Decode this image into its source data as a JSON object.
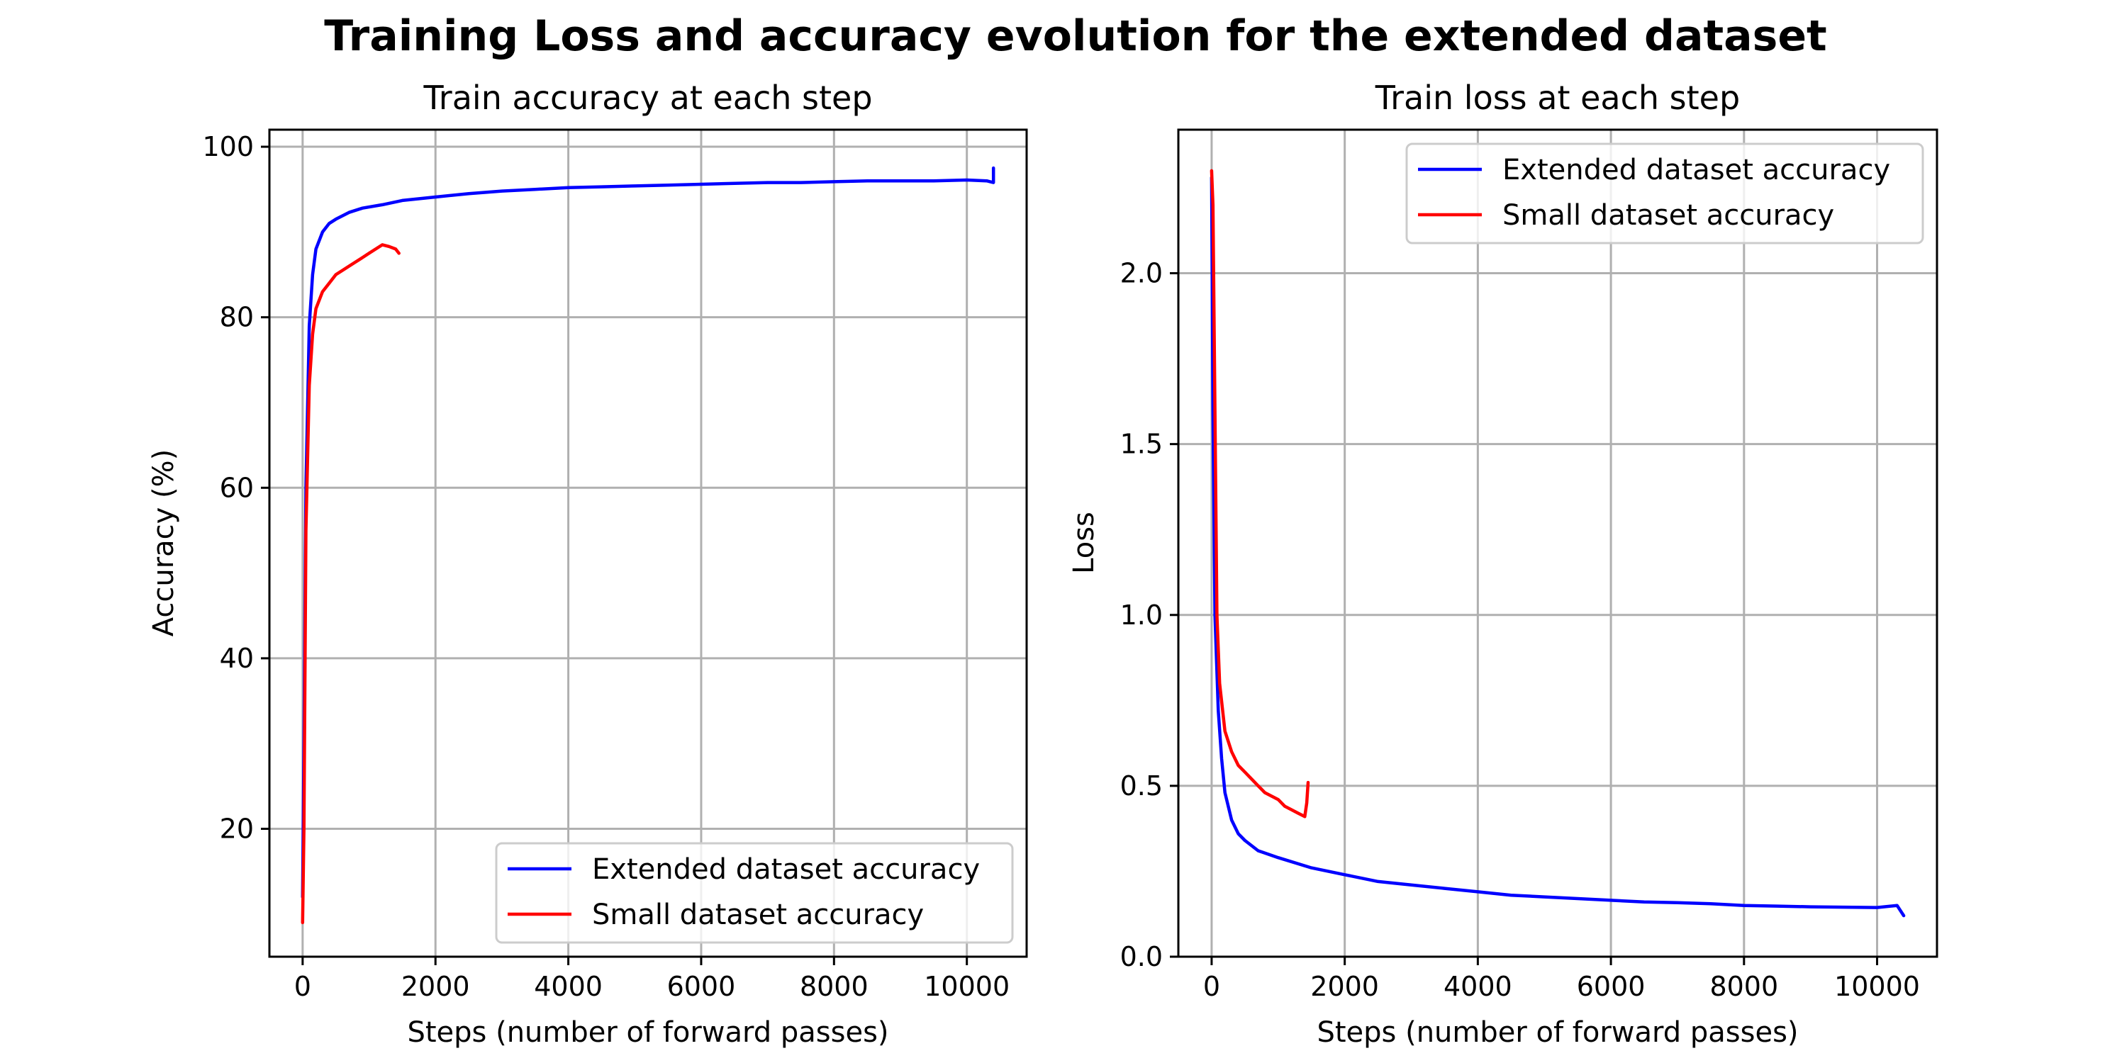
{
  "figure_title": "Training Loss and accuracy evolution for the extended dataset",
  "colors": {
    "extended": "#0000ff",
    "small": "#ff0000",
    "grid": "#b0b0b0"
  },
  "chart_data": [
    {
      "type": "line",
      "title": "Train accuracy at each step",
      "xlabel": "Steps (number of forward passes)",
      "ylabel": "Accuracy (%)",
      "xlim": [
        -500,
        10900
      ],
      "ylim": [
        5,
        102
      ],
      "xticks": [
        0,
        2000,
        4000,
        6000,
        8000,
        10000
      ],
      "yticks": [
        20,
        40,
        60,
        80,
        100
      ],
      "grid": true,
      "legend_position": "lower-right",
      "series": [
        {
          "name": "Extended dataset accuracy",
          "color": "#0000ff",
          "x": [
            0,
            20,
            50,
            100,
            150,
            200,
            300,
            400,
            500,
            700,
            900,
            1200,
            1500,
            2000,
            2500,
            3000,
            3500,
            4000,
            4500,
            5000,
            5500,
            6000,
            6500,
            7000,
            7500,
            8000,
            8500,
            9000,
            9500,
            10000,
            10300,
            10400,
            10400
          ],
          "y": [
            12,
            30,
            60,
            79,
            85,
            88,
            90,
            91,
            91.5,
            92.3,
            92.8,
            93.2,
            93.7,
            94.1,
            94.5,
            94.8,
            95.0,
            95.2,
            95.3,
            95.4,
            95.5,
            95.6,
            95.7,
            95.8,
            95.8,
            95.9,
            96.0,
            96.0,
            96.0,
            96.1,
            96.0,
            95.8,
            97.5
          ]
        },
        {
          "name": "Small dataset accuracy",
          "color": "#ff0000",
          "x": [
            0,
            20,
            50,
            100,
            150,
            200,
            300,
            400,
            500,
            600,
            700,
            800,
            900,
            1000,
            1100,
            1200,
            1300,
            1400,
            1450
          ],
          "y": [
            9,
            20,
            55,
            72,
            78,
            81,
            83,
            84,
            85,
            85.5,
            86,
            86.5,
            87,
            87.5,
            88,
            88.5,
            88.3,
            88.0,
            87.5
          ]
        }
      ]
    },
    {
      "type": "line",
      "title": "Train loss at each step",
      "xlabel": "Steps (number of forward passes)",
      "ylabel": "Loss",
      "xlim": [
        -500,
        10900
      ],
      "ylim": [
        0.0,
        2.42
      ],
      "xticks": [
        0,
        2000,
        4000,
        6000,
        8000,
        10000
      ],
      "yticks": [
        0.0,
        0.5,
        1.0,
        1.5,
        2.0
      ],
      "grid": true,
      "legend_position": "upper-right",
      "series": [
        {
          "name": "Extended dataset accuracy",
          "color": "#0000ff",
          "x": [
            0,
            20,
            50,
            100,
            150,
            200,
            300,
            400,
            500,
            700,
            1000,
            1500,
            2000,
            2500,
            3000,
            3500,
            4000,
            4500,
            5000,
            5500,
            6000,
            6500,
            7000,
            7500,
            8000,
            8500,
            9000,
            9500,
            10000,
            10300,
            10400
          ],
          "y": [
            2.28,
            1.6,
            1.0,
            0.72,
            0.58,
            0.48,
            0.4,
            0.36,
            0.34,
            0.31,
            0.29,
            0.26,
            0.24,
            0.22,
            0.21,
            0.2,
            0.19,
            0.18,
            0.175,
            0.17,
            0.165,
            0.16,
            0.158,
            0.155,
            0.15,
            0.148,
            0.146,
            0.145,
            0.144,
            0.15,
            0.12
          ]
        },
        {
          "name": "Small dataset accuracy",
          "color": "#ff0000",
          "x": [
            0,
            20,
            50,
            80,
            120,
            200,
            300,
            400,
            500,
            600,
            700,
            800,
            900,
            1000,
            1100,
            1200,
            1300,
            1400,
            1430,
            1450
          ],
          "y": [
            2.3,
            2.2,
            1.6,
            1.0,
            0.8,
            0.66,
            0.6,
            0.56,
            0.54,
            0.52,
            0.5,
            0.48,
            0.47,
            0.46,
            0.44,
            0.43,
            0.42,
            0.41,
            0.45,
            0.51
          ]
        }
      ]
    }
  ]
}
